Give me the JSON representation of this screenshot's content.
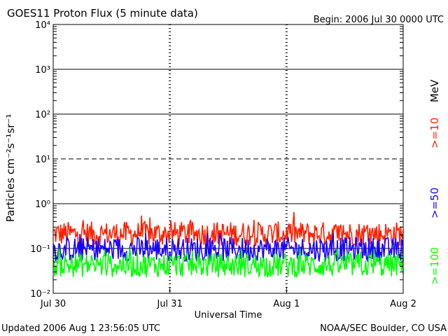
{
  "header": {
    "title": "GOES11 Proton Flux (5 minute data)",
    "begin": "Begin: 2006 Jul 30 0000 UTC"
  },
  "footer": {
    "updated": "Updated 2006 Aug  1 23:56:05 UTC",
    "credit": "NOAA/SEC Boulder, CO USA"
  },
  "colors": {
    "p10": "#ff2000",
    "p50": "#1800ff",
    "p100": "#00ff00",
    "axis": "#000000"
  },
  "chart_data": {
    "type": "line",
    "title": "GOES11 Proton Flux (5 minute data)",
    "xlabel": "Universal Time",
    "ylabel": "Particles cm⁻²s⁻¹sr⁻¹",
    "yscale": "log",
    "ylim": [
      0.01,
      10000
    ],
    "xlim": [
      "2006-07-30",
      "2006-08-02"
    ],
    "x_ticks": [
      "Jul 30",
      "Jul 31",
      "Aug 1",
      "Aug 2"
    ],
    "y_ticks": [
      "10⁻²",
      "10⁻¹",
      "10⁰",
      "10¹",
      "10²",
      "10³",
      "10⁴"
    ],
    "grid": "solid lines at 10⁻¹, 10⁰, 10², 10³; dashed at 10¹",
    "legend_position": "right",
    "legend_unit": "MeV",
    "sample_interval_minutes": 5,
    "series": [
      {
        "name": ">=10",
        "color": "#ff2000",
        "baseline": 0.2,
        "min": 0.1,
        "max": 0.65
      },
      {
        "name": ">=50",
        "color": "#1800ff",
        "baseline": 0.09,
        "min": 0.04,
        "max": 0.22
      },
      {
        "name": ">=100",
        "color": "#00ff00",
        "baseline": 0.04,
        "min": 0.02,
        "max": 0.1
      }
    ]
  }
}
